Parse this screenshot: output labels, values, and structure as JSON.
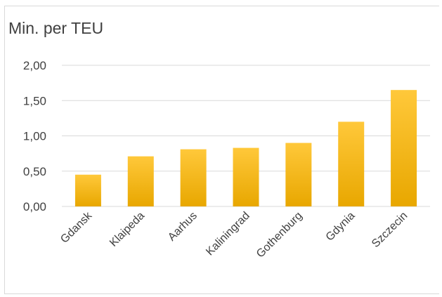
{
  "chart_data": {
    "type": "bar",
    "title": "Min. per TEU",
    "categories": [
      "Gdansk",
      "Klaipeda",
      "Aarhus",
      "Kaliningrad",
      "Gothenburg",
      "Gdynia",
      "Szczecin"
    ],
    "values": [
      0.45,
      0.71,
      0.81,
      0.83,
      0.9,
      1.2,
      1.65
    ],
    "ylim": [
      0,
      2
    ],
    "yticks": [
      "0,00",
      "0,50",
      "1,00",
      "1,50",
      "2,00"
    ],
    "ytick_values": [
      0,
      0.5,
      1,
      1.5,
      2
    ],
    "grid": true,
    "colors": {
      "bar_top": "#ffc83a",
      "bar_bottom": "#e8a700",
      "grid": "#d9d9d9",
      "text": "#404040"
    }
  }
}
